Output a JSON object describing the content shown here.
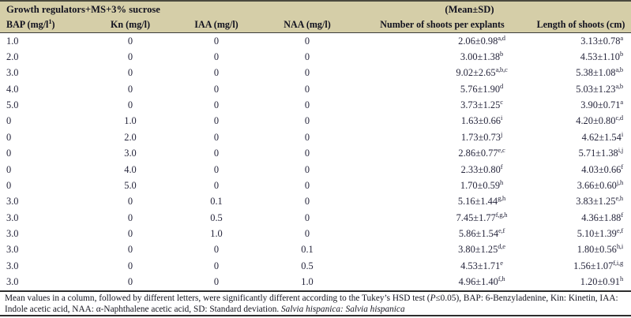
{
  "colors": {
    "header_bg": "#d5cea8",
    "rule": "#2e2e2e",
    "text": "#26263c"
  },
  "header": {
    "group_left": "Growth regulators+MS+3% sucrose",
    "group_right": "(Mean±SD)",
    "columns": [
      {
        "text": "BAP (mg/l",
        "sup": "1",
        "post": ")"
      },
      {
        "text": "Kn (mg/l)"
      },
      {
        "text": "IAA (mg/l)"
      },
      {
        "text": "NAA (mg/l)"
      },
      {
        "text": "Number of shoots per explants"
      },
      {
        "text": "Length of shoots (cm)"
      }
    ]
  },
  "rows": [
    {
      "bap": "1.0",
      "kn": "0",
      "iaa": "0",
      "naa": "0",
      "shoots": {
        "v": "2.06±0.98",
        "s": "a,d"
      },
      "length": {
        "v": "3.13±0.78",
        "s": "a"
      }
    },
    {
      "bap": "2.0",
      "kn": "0",
      "iaa": "0",
      "naa": "0",
      "shoots": {
        "v": "3.00±1.38",
        "s": "b"
      },
      "length": {
        "v": "4.53±1.10",
        "s": "b"
      }
    },
    {
      "bap": "3.0",
      "kn": "0",
      "iaa": "0",
      "naa": "0",
      "shoots": {
        "v": "9.02±2.65",
        "s": "a,b,c"
      },
      "length": {
        "v": "5.38±1.08",
        "s": "a,b"
      }
    },
    {
      "bap": "4.0",
      "kn": "0",
      "iaa": "0",
      "naa": "0",
      "shoots": {
        "v": "5.76±1.90",
        "s": "d"
      },
      "length": {
        "v": "5.03±1.23",
        "s": "a,b"
      }
    },
    {
      "bap": "5.0",
      "kn": "0",
      "iaa": "0",
      "naa": "0",
      "shoots": {
        "v": "3.73±1.25",
        "s": "c"
      },
      "length": {
        "v": "3.90±0.71",
        "s": "a"
      }
    },
    {
      "bap": "0",
      "kn": "1.0",
      "iaa": "0",
      "naa": "0",
      "shoots": {
        "v": "1.63±0.66",
        "s": "i"
      },
      "length": {
        "v": "4.20±0.80",
        "s": "c,d"
      }
    },
    {
      "bap": "0",
      "kn": "2.0",
      "iaa": "0",
      "naa": "0",
      "shoots": {
        "v": "1.73±0.73",
        "s": "j"
      },
      "length": {
        "v": "4.62±1.54",
        "s": "i"
      }
    },
    {
      "bap": "0",
      "kn": "3.0",
      "iaa": "0",
      "naa": "0",
      "shoots": {
        "v": "2.86±0.77",
        "s": "e,c"
      },
      "length": {
        "v": "5.71±1.38",
        "s": "i,j"
      }
    },
    {
      "bap": "0",
      "kn": "4.0",
      "iaa": "0",
      "naa": "0",
      "shoots": {
        "v": "2.33±0.80",
        "s": "f"
      },
      "length": {
        "v": "4.03±0.66",
        "s": "f"
      }
    },
    {
      "bap": "0",
      "kn": "5.0",
      "iaa": "0",
      "naa": "0",
      "shoots": {
        "v": "1.70±0.59",
        "s": "h"
      },
      "length": {
        "v": "3.66±0.60",
        "s": "j,h"
      }
    },
    {
      "bap": "3.0",
      "kn": "0",
      "iaa": "0.1",
      "naa": "0",
      "shoots": {
        "v": "5.16±1.44",
        "s": "g,h"
      },
      "length": {
        "v": "3.83±1.25",
        "s": "e,h"
      }
    },
    {
      "bap": "3.0",
      "kn": "0",
      "iaa": "0.5",
      "naa": "0",
      "shoots": {
        "v": "7.45±1.77",
        "s": "f,g,h"
      },
      "length": {
        "v": "4.36±1.88",
        "s": "f"
      }
    },
    {
      "bap": "3.0",
      "kn": "0",
      "iaa": "1.0",
      "naa": "0",
      "shoots": {
        "v": "5.86±1.54",
        "s": "e,f"
      },
      "length": {
        "v": "5.10±1.39",
        "s": "e,f"
      }
    },
    {
      "bap": "3.0",
      "kn": "0",
      "iaa": "0",
      "naa": "0.1",
      "shoots": {
        "v": "3.80±1.25",
        "s": "d,e"
      },
      "length": {
        "v": "1.80±0.56",
        "s": "h,i"
      }
    },
    {
      "bap": "3.0",
      "kn": "0",
      "iaa": "0",
      "naa": "0.5",
      "shoots": {
        "v": "4.53±1.71",
        "s": "e"
      },
      "length": {
        "v": "1.56±1.07",
        "s": "f,i,g"
      }
    },
    {
      "bap": "3.0",
      "kn": "0",
      "iaa": "0",
      "naa": "1.0",
      "shoots": {
        "v": "4.96±1.40",
        "s": "f,h"
      },
      "length": {
        "v": "1.20±0.91",
        "s": "h"
      }
    }
  ],
  "footnote": {
    "segments": [
      {
        "t": "Mean values in a column, followed by different letters, were significantly different according to the Tukey’s HSD test (",
        "i": false
      },
      {
        "t": "P",
        "i": true
      },
      {
        "t": "≤0.05), BAP: 6-Benzyladenine, Kin: Kinetin, IAA: Indole acetic acid, NAA: α-Naphthalene acetic acid, SD: Standard deviation. ",
        "i": false
      },
      {
        "t": "Salvia hispanica: Salvia hispanica",
        "i": true
      }
    ]
  }
}
